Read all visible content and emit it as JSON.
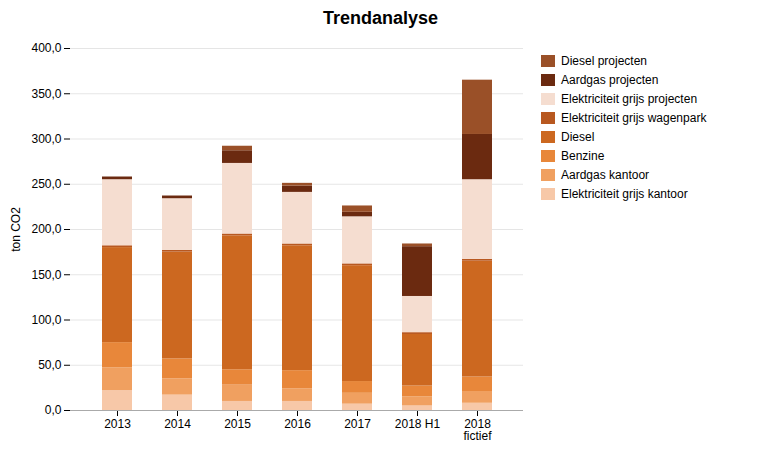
{
  "chart_data": {
    "type": "bar",
    "stacked": true,
    "title": "Trendanalyse",
    "ylabel": "ton CO2",
    "categories": [
      "2013",
      "2014",
      "2015",
      "2016",
      "2017",
      "2018 H1",
      "2018\nfictief"
    ],
    "series": [
      {
        "name": "Elektriciteit grijs kantoor",
        "color": "#f7c8a8",
        "values": [
          22,
          17,
          10,
          10,
          7,
          5,
          8
        ]
      },
      {
        "name": "Aardgas kantoor",
        "color": "#f0a060",
        "values": [
          25,
          18,
          18,
          14,
          12,
          10,
          13
        ]
      },
      {
        "name": "Benzine",
        "color": "#e8873a",
        "values": [
          28,
          22,
          17,
          20,
          13,
          12,
          16
        ]
      },
      {
        "name": "Diesel",
        "color": "#cc6820",
        "values": [
          105,
          118,
          148,
          138,
          128,
          57,
          128
        ]
      },
      {
        "name": "Elektriciteit grijs wagenpark",
        "color": "#b85820",
        "values": [
          2,
          2,
          2,
          2,
          2,
          2,
          2
        ]
      },
      {
        "name": "Elektriciteit grijs projecten",
        "color": "#f5ddd0",
        "values": [
          73,
          57,
          78,
          57,
          52,
          40,
          88
        ]
      },
      {
        "name": "Aardgas projecten",
        "color": "#6b2a10",
        "values": [
          3,
          3,
          14,
          7,
          5,
          55,
          50
        ]
      },
      {
        "name": "Diesel projecten",
        "color": "#9a5028",
        "values": [
          0,
          0,
          5,
          3,
          7,
          3,
          60
        ]
      }
    ],
    "ylim": [
      0,
      400
    ],
    "yticks": [
      {
        "value": 0,
        "label": "0,0"
      },
      {
        "value": 50,
        "label": "50,0"
      },
      {
        "value": 100,
        "label": "100,0"
      },
      {
        "value": 150,
        "label": "150,0"
      },
      {
        "value": 200,
        "label": "200,0"
      },
      {
        "value": 250,
        "label": "250,0"
      },
      {
        "value": 300,
        "label": "300,0"
      },
      {
        "value": 350,
        "label": "350,0"
      },
      {
        "value": 400,
        "label": "400,0"
      }
    ],
    "grid": true,
    "legend": "right"
  }
}
